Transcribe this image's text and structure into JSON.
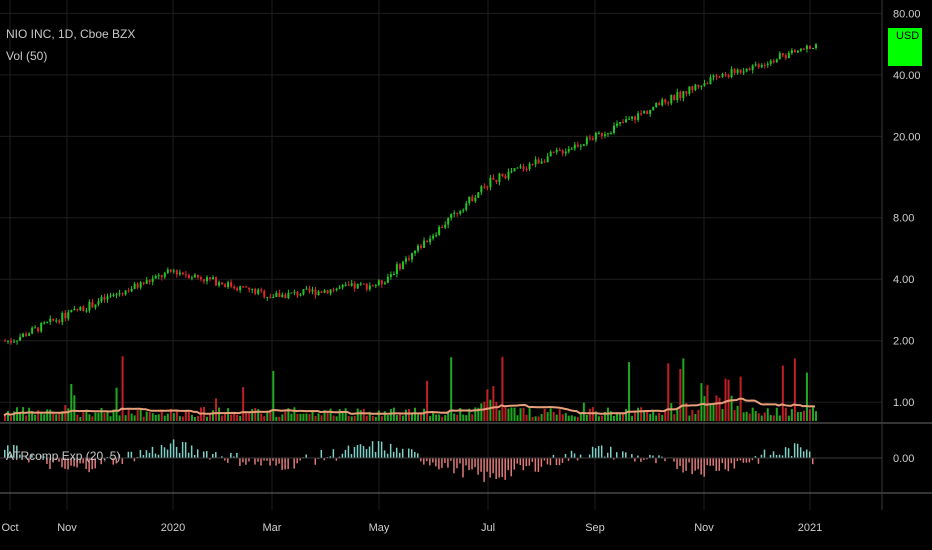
{
  "header": {
    "symbol_line": "NIO INC, 1D, Cboe BZX",
    "volume_label": "Vol (50)",
    "indicator_label": "ATRcomp Exp (20, 5)"
  },
  "price_axis": {
    "currency": "USD",
    "currency_badge_color": "#00ff00",
    "ticks": [
      "80.00",
      "40.00",
      "20.00",
      "8.00",
      "4.00",
      "2.00",
      "1.00"
    ]
  },
  "indicator_axis": {
    "ticks": [
      "0.00"
    ]
  },
  "time_axis": {
    "ticks": [
      "Oct",
      "Nov",
      "2020",
      "Mar",
      "May",
      "Jul",
      "Sep",
      "Nov",
      "2021"
    ]
  },
  "colors": {
    "up": "#26c526",
    "down": "#e0262b",
    "vol_ma": "#e8a07a",
    "hist_up": "#7fd1c8",
    "hist_down": "#e07a7a",
    "grid": "#1e1e1e"
  },
  "chart_data": [
    {
      "type": "line",
      "title": "NIO INC, 1D, Cboe BZX",
      "yscale": "log",
      "ylim": [
        0.8,
        85
      ],
      "x": [
        "Oct",
        "Nov",
        "2020",
        "Mar",
        "May",
        "Jul",
        "Sep",
        "Nov",
        "2021"
      ],
      "series": [
        {
          "name": "NIO INC",
          "values": [
            2.0,
            2.7,
            4.4,
            3.3,
            3.8,
            12.0,
            20.0,
            37.0,
            55.0
          ]
        }
      ],
      "ylabel": "USD"
    },
    {
      "type": "bar",
      "title": "Vol (50)",
      "x": [
        "Oct",
        "Nov",
        "2020",
        "Mar",
        "May",
        "Jul",
        "Sep",
        "Nov",
        "2021"
      ],
      "series": [
        {
          "name": "Vol",
          "values": [
            0.1,
            0.15,
            0.35,
            0.2,
            0.15,
            0.5,
            0.3,
            0.4,
            0.35
          ]
        }
      ]
    },
    {
      "type": "bar",
      "title": "ATRcomp Exp (20, 5)",
      "x": [
        "Oct",
        "Nov",
        "2020",
        "Mar",
        "May",
        "Jul",
        "Sep",
        "Nov",
        "2021"
      ],
      "series": [
        {
          "name": "ATRcomp Exp",
          "values": [
            0.2,
            -0.3,
            0.3,
            -0.2,
            0.3,
            -0.5,
            0.2,
            -0.3,
            0.3
          ]
        }
      ]
    }
  ]
}
